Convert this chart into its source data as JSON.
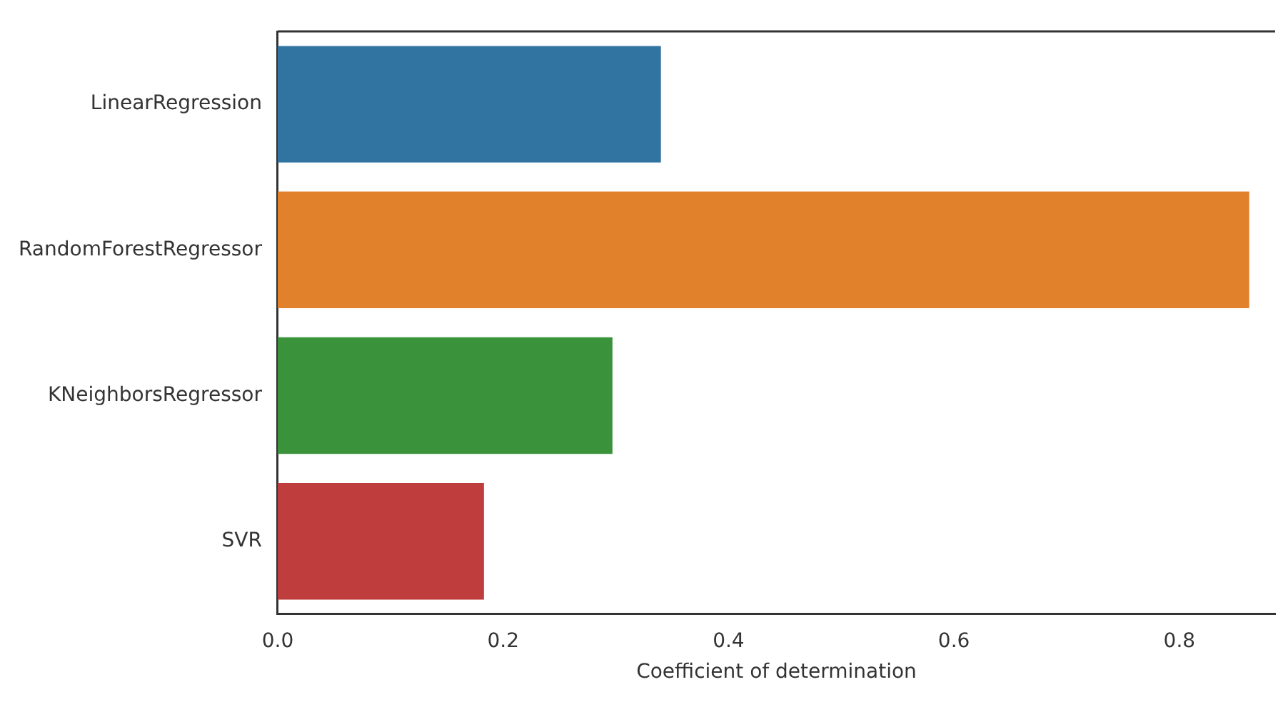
{
  "chart_data": {
    "type": "bar",
    "orientation": "horizontal",
    "xlabel": "Coefficient of determination",
    "categories": [
      "LinearRegression",
      "RandomForestRegressor",
      "KNeighborsRegressor",
      "SVR"
    ],
    "values": [
      0.34,
      0.862,
      0.297,
      0.183
    ],
    "colors": [
      "#3274a1",
      "#e1812c",
      "#3a923a",
      "#c03d3e"
    ],
    "xlim": [
      0,
      0.885
    ],
    "xticks": [
      {
        "value": 0,
        "label": "0.0"
      },
      {
        "value": 0.2,
        "label": "0.2"
      },
      {
        "value": 0.4,
        "label": "0.4"
      },
      {
        "value": 0.6,
        "label": "0.6"
      },
      {
        "value": 0.8,
        "label": "0.8"
      }
    ],
    "grid": false,
    "legend": false
  }
}
